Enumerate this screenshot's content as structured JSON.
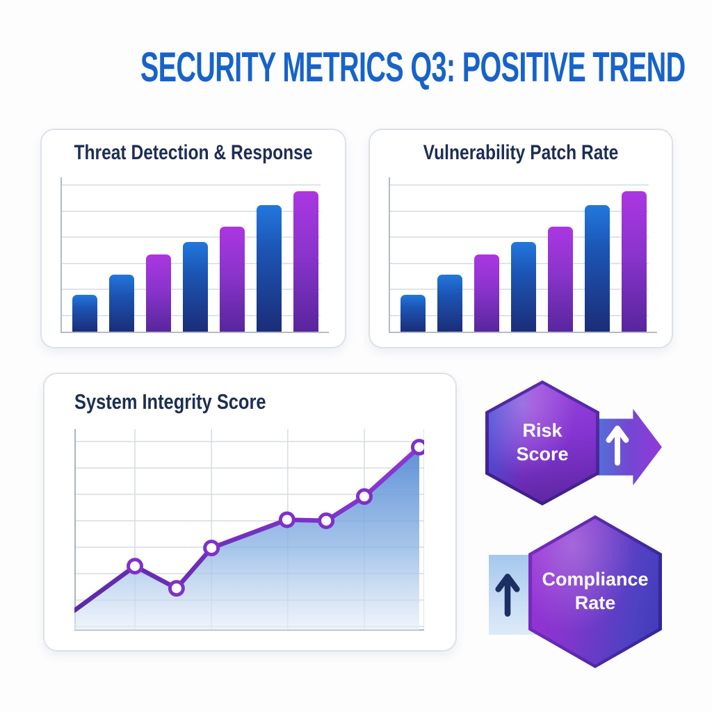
{
  "title": "SECURITY METRICS Q3: POSITIVE TREND",
  "colors": {
    "title_blue": "#1763c8",
    "heading_navy": "#1d2d55",
    "bar_blue_top": "#2277dd",
    "bar_blue_bottom": "#1b2d78",
    "bar_purple_top": "#ab36e2",
    "bar_purple_bottom": "#57269c",
    "line_purple": "#7e31c8",
    "area_blue": "#4f86d4",
    "grid_gray": "#dfe3e9",
    "hexagon_purple": "#8c35d2",
    "hexagon_blue": "#3f3ab6",
    "arrow_badge_blue": "#4b7bd8",
    "arrow_badge_purple": "#9139d9",
    "light_blue_rect": "#a5c7ee",
    "navy_arrow": "#1c2f63"
  },
  "chart_data": [
    {
      "type": "bar",
      "title": "Threat Detection & Response",
      "categories": [
        "1",
        "2",
        "3",
        "4",
        "5",
        "6",
        "7"
      ],
      "values": [
        24,
        37,
        50,
        58,
        68,
        82,
        91
      ],
      "bar_colors": [
        "blue",
        "blue",
        "purple",
        "blue",
        "purple",
        "blue",
        "purple"
      ],
      "ylim": [
        0,
        100
      ],
      "gridlines": 6,
      "tick_labels_visible": false,
      "legend": "none"
    },
    {
      "type": "bar",
      "title": "Vulnerability Patch Rate",
      "categories": [
        "1",
        "2",
        "3",
        "4",
        "5",
        "6",
        "7"
      ],
      "values": [
        24,
        37,
        50,
        58,
        68,
        82,
        91
      ],
      "bar_colors": [
        "blue",
        "blue",
        "purple",
        "blue",
        "purple",
        "blue",
        "purple"
      ],
      "ylim": [
        0,
        100
      ],
      "gridlines": 6,
      "tick_labels_visible": false,
      "legend": "none"
    },
    {
      "type": "line",
      "title": "System Integrity Score",
      "x_pct": [
        0,
        17.3,
        29.2,
        39.2,
        60.8,
        72,
        82.9,
        98.6
      ],
      "values": [
        10,
        32,
        21,
        41,
        55,
        54.5,
        66.5,
        91
      ],
      "ylim": [
        0,
        100
      ],
      "area_fill": true,
      "markers_from_index": 1,
      "grid": {
        "vertical_x_pct": [
          0,
          17.3,
          39.2,
          61,
          82.9,
          100
        ],
        "horizontal_lines": 8
      },
      "tick_labels_visible": false,
      "legend": "none"
    }
  ],
  "badges": [
    {
      "label": "Risk Score",
      "trend": "up",
      "shape": "hexagon",
      "arrow_position": "right"
    },
    {
      "label": "Compliance Rate",
      "trend": "up",
      "shape": "hexagon",
      "arrow_position": "left"
    }
  ]
}
